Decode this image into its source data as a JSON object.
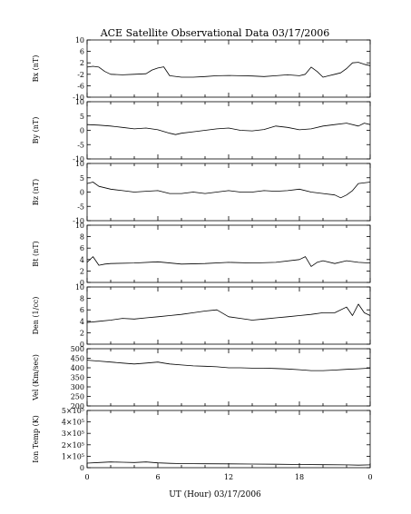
{
  "title": "ACE Satellite Observational Data   03/17/2006",
  "xlabel": "UT (Hour)   03/17/2006",
  "chart_data": {
    "type": "line",
    "title": "ACE Satellite Observational Data   03/17/2006",
    "xlabel": "UT (Hour)   03/17/2006",
    "x_ticks": [
      "0",
      "6",
      "12",
      "18",
      "0"
    ],
    "xlim": [
      0,
      24
    ],
    "panels": [
      {
        "ylabel": "Bx (nT)",
        "ylim": [
          -10,
          10
        ],
        "yticks": [
          "10",
          "6",
          "2",
          "-2",
          "-6",
          "-10"
        ],
        "ytick_values": [
          10,
          6,
          2,
          -2,
          -6,
          -10
        ],
        "series": [
          {
            "x": [
              0,
              0.5,
              1,
              1.5,
              2,
              3,
              4,
              5,
              5.5,
              6,
              6.5,
              7,
              8,
              9,
              10,
              11,
              12,
              13,
              14,
              15,
              16,
              17,
              18,
              18.5,
              19,
              19.5,
              20,
              20.5,
              21,
              21.5,
              22,
              22.5,
              23,
              23.5,
              24
            ],
            "y": [
              0.5,
              0.8,
              0.5,
              -1,
              -2,
              -2.2,
              -2,
              -1.8,
              -0.5,
              0.2,
              0.6,
              -2.5,
              -3,
              -3,
              -2.8,
              -2.5,
              -2.4,
              -2.5,
              -2.6,
              -2.8,
              -2.5,
              -2.2,
              -2.5,
              -2,
              0.5,
              -1,
              -3,
              -2.5,
              -2,
              -1.5,
              0,
              2,
              2.2,
              1.5,
              1
            ]
          }
        ]
      },
      {
        "ylabel": "By (nT)",
        "ylim": [
          -10,
          10
        ],
        "yticks": [
          "10",
          "5",
          "0",
          "-5",
          "-10"
        ],
        "ytick_values": [
          10,
          5,
          0,
          -5,
          -10
        ],
        "series": [
          {
            "x": [
              0,
              1,
              2,
              3,
              4,
              5,
              6,
              7,
              7.5,
              8,
              9,
              10,
              11,
              12,
              13,
              14,
              15,
              16,
              17,
              18,
              19,
              20,
              21,
              22,
              23,
              23.5,
              24
            ],
            "y": [
              2,
              1.8,
              1.5,
              1,
              0.5,
              0.8,
              0.2,
              -1,
              -1.5,
              -1,
              -0.5,
              0,
              0.5,
              0.8,
              0,
              -0.2,
              0.3,
              1.5,
              1,
              0.2,
              0.5,
              1.5,
              2,
              2.5,
              1.5,
              2.5,
              2
            ]
          }
        ]
      },
      {
        "ylabel": "Bz (nT)",
        "ylim": [
          -10,
          10
        ],
        "yticks": [
          "10",
          "5",
          "0",
          "-5",
          "-10"
        ],
        "ytick_values": [
          10,
          5,
          0,
          -5,
          -10
        ],
        "series": [
          {
            "x": [
              0,
              0.5,
              1,
              2,
              3,
              4,
              5,
              6,
              7,
              8,
              9,
              10,
              11,
              12,
              13,
              14,
              15,
              16,
              17,
              18,
              19,
              20,
              21,
              21.5,
              22,
              22.5,
              23,
              24
            ],
            "y": [
              3,
              3.5,
              2,
              1,
              0.5,
              0,
              0.3,
              0.5,
              -0.5,
              -0.5,
              0,
              -0.5,
              0,
              0.5,
              0,
              0,
              0.5,
              0.3,
              0.5,
              1,
              0,
              -0.5,
              -1,
              -2,
              -1,
              0.5,
              3,
              3.5
            ]
          }
        ]
      },
      {
        "ylabel": "Bt (nT)",
        "ylim": [
          0,
          10
        ],
        "yticks": [
          "10",
          "8",
          "6",
          "4",
          "2",
          "0"
        ],
        "ytick_values": [
          10,
          8,
          6,
          4,
          2,
          0
        ],
        "series": [
          {
            "x": [
              0,
              0.5,
              1,
              1.5,
              2,
              4,
              6,
              8,
              10,
              12,
              14,
              16,
              18,
              18.5,
              19,
              19.5,
              20,
              21,
              22,
              23,
              24
            ],
            "y": [
              3.5,
              4.5,
              3,
              3.2,
              3.3,
              3.4,
              3.6,
              3.2,
              3.3,
              3.5,
              3.4,
              3.5,
              4,
              4.5,
              2.8,
              3.5,
              3.8,
              3.3,
              3.8,
              3.5,
              3.4
            ]
          }
        ]
      },
      {
        "ylabel": "Den (1/cc)",
        "ylim": [
          0,
          10
        ],
        "yticks": [
          "10",
          "8",
          "6",
          "4",
          "2",
          "0"
        ],
        "ytick_values": [
          10,
          8,
          6,
          4,
          2,
          0
        ],
        "series": [
          {
            "x": [
              0,
              1,
              2,
              3,
              4,
              5,
              6,
              7,
              8,
              9,
              10,
              11,
              12,
              13,
              14,
              15,
              16,
              17,
              18,
              19,
              20,
              21,
              22,
              22.5,
              23,
              23.5,
              24
            ],
            "y": [
              3.8,
              4,
              4.2,
              4.5,
              4.4,
              4.6,
              4.8,
              5,
              5.2,
              5.5,
              5.8,
              6,
              4.8,
              4.5,
              4.2,
              4.4,
              4.6,
              4.8,
              5,
              5.2,
              5.5,
              5.5,
              6.5,
              5,
              7,
              5.5,
              5
            ]
          }
        ]
      },
      {
        "ylabel": "Vel (Km/sec)",
        "ylim": [
          200,
          500
        ],
        "yticks": [
          "500",
          "450",
          "400",
          "350",
          "300",
          "250",
          "200"
        ],
        "ytick_values": [
          500,
          450,
          400,
          350,
          300,
          250,
          200
        ],
        "series": [
          {
            "x": [
              0,
              1,
              2,
              3,
              4,
              5,
              6,
              6.5,
              7,
              8,
              9,
              10,
              11,
              12,
              13,
              14,
              15,
              16,
              17,
              18,
              19,
              20,
              21,
              22,
              23,
              24
            ],
            "y": [
              440,
              435,
              430,
              425,
              420,
              425,
              430,
              425,
              420,
              415,
              410,
              408,
              405,
              400,
              400,
              398,
              398,
              396,
              394,
              390,
              385,
              385,
              388,
              392,
              395,
              398
            ]
          }
        ]
      },
      {
        "ylabel": "Ion Temp (K)",
        "ylim": [
          0,
          500000
        ],
        "yticks": [
          "5×10⁵",
          "4×10⁵",
          "3×10⁵",
          "2×10⁵",
          "1×10⁵",
          "0"
        ],
        "ytick_values": [
          500000,
          400000,
          300000,
          200000,
          100000,
          0
        ],
        "series": [
          {
            "x": [
              0,
              1,
              2,
              3,
              4,
              5,
              6,
              7,
              8,
              9,
              10,
              12,
              14,
              16,
              18,
              20,
              22,
              23,
              24
            ],
            "y": [
              40000,
              45000,
              50000,
              48000,
              45000,
              50000,
              42000,
              38000,
              36000,
              35000,
              34000,
              33000,
              32000,
              30000,
              28000,
              26000,
              25000,
              22000,
              25000
            ]
          }
        ]
      }
    ]
  }
}
